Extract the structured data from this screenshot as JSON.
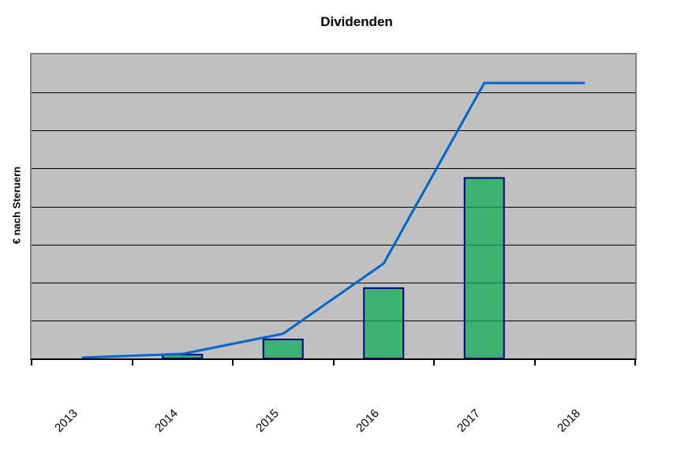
{
  "chart_data": {
    "type": "bar",
    "title": "Dividenden",
    "xlabel": "",
    "ylabel": "€ nach Steruern",
    "categories": [
      "2013",
      "2014",
      "2015",
      "2016",
      "2017",
      "2018"
    ],
    "series": [
      {
        "type": "bar",
        "values": [
          0,
          0.1,
          0.5,
          1.85,
          4.75,
          0
        ]
      },
      {
        "type": "line",
        "values": [
          0.02,
          0.12,
          0.65,
          2.5,
          7.25,
          7.25
        ]
      }
    ],
    "ylim": [
      0,
      8
    ],
    "y_gridline_divisions": 8,
    "y_tick_labels": [],
    "x_tick_label_rotation_deg": 45,
    "legend": "none",
    "grid": "horizontal"
  },
  "colors": {
    "page_background": "#FFFFFF",
    "plot_background": "#C0C0C0",
    "plot_border": "#808080",
    "axis": "#000000",
    "gridline": "#000000",
    "bar_fill": "#3CB371",
    "bar_gridline_overlay": "#0F7C41",
    "bar_border": "#000080",
    "line": "#0066CC",
    "text": "#000000"
  }
}
